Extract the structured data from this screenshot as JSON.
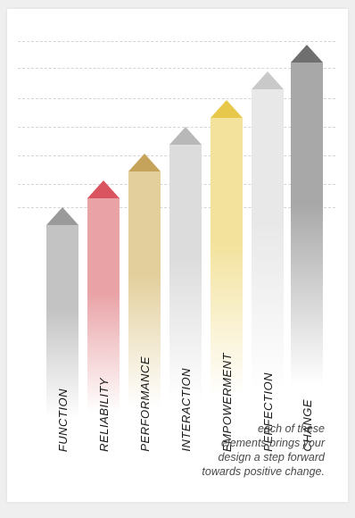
{
  "diagram": {
    "steps": [
      {
        "label": "FUNCTION",
        "color": "#c3c3c3",
        "tip": "#9a9a9a"
      },
      {
        "label": "RELIABILITY",
        "color": "#e9a2a6",
        "tip": "#d9545e"
      },
      {
        "label": "PERFORMANCE",
        "color": "#e3cf9c",
        "tip": "#c5a35a"
      },
      {
        "label": "INTERACTION",
        "color": "#dcdcdc",
        "tip": "#b8b8b8"
      },
      {
        "label": "EMPOWERMENT",
        "color": "#f3e29b",
        "tip": "#e8c84a"
      },
      {
        "label": "PERFECTION",
        "color": "#e8e8e8",
        "tip": "#c9c9c9"
      },
      {
        "label": "CHANGE",
        "color": "#a8a8a8",
        "tip": "#6f6f6f"
      }
    ],
    "caption": [
      "each of these",
      "elements brings your",
      "design a step forward",
      "towards positive change."
    ]
  }
}
